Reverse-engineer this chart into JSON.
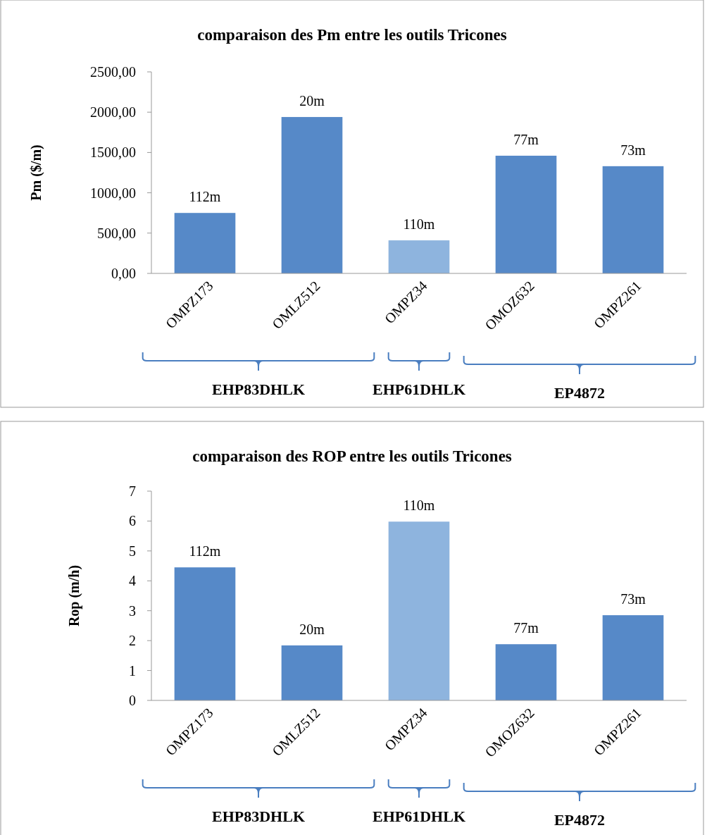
{
  "chart_data": [
    {
      "type": "bar",
      "title": "comparaison des Pm entre les outils Tricones",
      "ylabel": "Pm ($/m)",
      "categories": [
        "OMPZ173",
        "OMLZ512",
        "OMPZ34",
        "OMOZ632",
        "OMPZ261"
      ],
      "values": [
        750,
        1940,
        410,
        1460,
        1330
      ],
      "colors": [
        "#5689c8",
        "#5689c8",
        "#8eb4de",
        "#5689c8",
        "#5689c8"
      ],
      "ylim": [
        0,
        2500
      ],
      "yticks": [
        {
          "value": 0,
          "label": "0,00"
        },
        {
          "value": 500,
          "label": "500,00"
        },
        {
          "value": 1000,
          "label": "1000,00"
        },
        {
          "value": 1500,
          "label": "1500,00"
        },
        {
          "value": 2000,
          "label": "2000,00"
        },
        {
          "value": 2500,
          "label": "2500,00"
        }
      ],
      "grid": false,
      "annotations": [
        {
          "text": "112m",
          "x": "OMPZ173",
          "y": 750
        },
        {
          "text": "20m",
          "x": "OMLZ512",
          "y": 1940
        },
        {
          "text": "110m",
          "x": "OMPZ34",
          "y": 410
        },
        {
          "text": "77m",
          "x": "OMOZ632",
          "y": 1460
        },
        {
          "text": "73m",
          "x": "OMPZ261",
          "y": 1330
        },
        "EHP83DHLK",
        "EHP61DHLK",
        "EP4872"
      ]
    },
    {
      "type": "bar",
      "title": "comparaison des ROP entre les outils Tricones",
      "ylabel": "Rop  (m/h)",
      "categories": [
        "OMPZ173",
        "OMLZ512",
        "OMPZ34",
        "OMOZ632",
        "OMPZ261"
      ],
      "values": [
        4.45,
        1.84,
        5.98,
        1.88,
        2.85
      ],
      "colors": [
        "#5689c8",
        "#5689c8",
        "#8eb4de",
        "#5689c8",
        "#5689c8"
      ],
      "ylim": [
        0,
        7
      ],
      "yticks": [
        0,
        1,
        2,
        3,
        4,
        5,
        6,
        7
      ],
      "grid": false,
      "annotations": [
        {
          "text": "112m",
          "x": "OMPZ173",
          "y": 4.45
        },
        {
          "text": "20m",
          "x": "OMLZ512",
          "y": 1.84
        },
        {
          "text": "110m",
          "x": "OMPZ34",
          "y": 5.98
        },
        {
          "text": "77m",
          "x": "OMOZ632",
          "y": 1.88
        },
        {
          "text": "73m",
          "x": "OMPZ261",
          "y": 2.85
        },
        "EHP83DHLK",
        "EHP61DHLK",
        "EP4872"
      ]
    }
  ]
}
